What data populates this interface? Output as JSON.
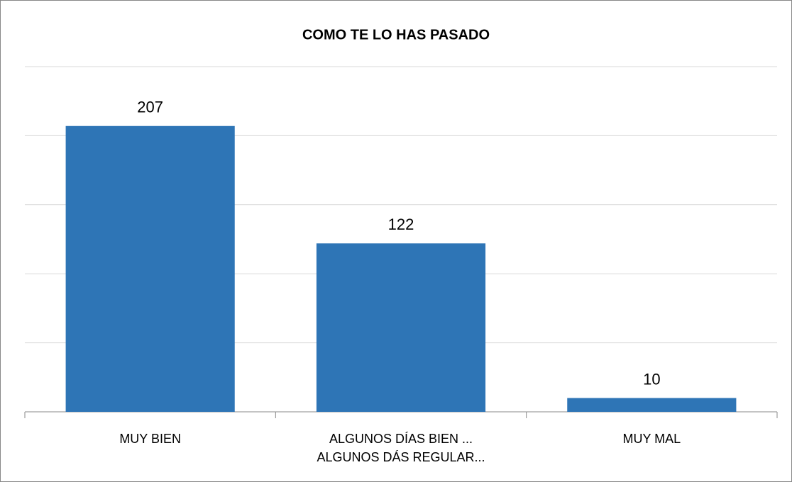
{
  "chart_data": {
    "type": "bar",
    "title": "COMO TE LO HAS PASADO",
    "categories": [
      "MUY BIEN",
      "ALGUNOS DÍAS BIEN ... ALGUNOS DÁS REGULAR...",
      "MUY MAL"
    ],
    "values": [
      207,
      122,
      10
    ],
    "color": "#2e75b6",
    "ylim": [
      0,
      250
    ],
    "yticks": [
      0,
      50,
      100,
      150,
      200,
      250
    ],
    "grid": true
  }
}
